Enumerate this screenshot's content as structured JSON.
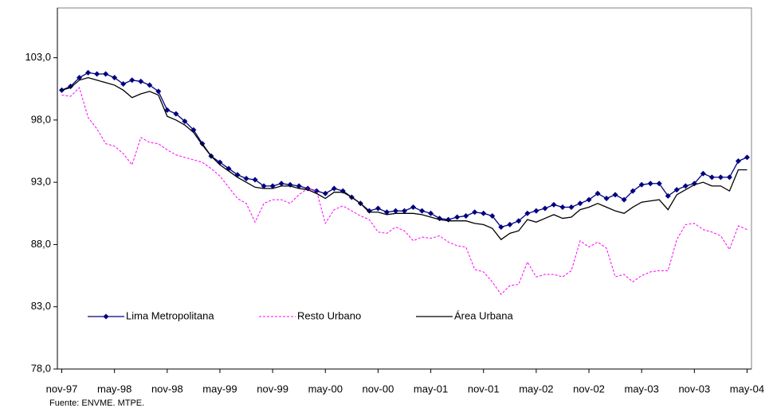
{
  "chart_data": {
    "type": "line",
    "source": "Fuente: ENVME. MTPE.",
    "categories": [
      "nov-97",
      null,
      null,
      null,
      null,
      null,
      "may-98",
      null,
      null,
      null,
      null,
      null,
      "nov-98",
      null,
      null,
      null,
      null,
      null,
      "may-99",
      null,
      null,
      null,
      null,
      null,
      "nov-99",
      null,
      null,
      null,
      null,
      null,
      "may-00",
      null,
      null,
      null,
      null,
      null,
      "nov-00",
      null,
      null,
      null,
      null,
      null,
      "may-01",
      null,
      null,
      null,
      null,
      null,
      "nov-01",
      null,
      null,
      null,
      null,
      null,
      "may-02",
      null,
      null,
      null,
      null,
      null,
      "nov-02",
      null,
      null,
      null,
      null,
      null,
      "may-03",
      null,
      null,
      null,
      null,
      null,
      "nov-03",
      null,
      null,
      null,
      null,
      null,
      "may-04"
    ],
    "series": [
      {
        "name": "Lima Metropolitana",
        "color": "#000080",
        "marker": "diamond",
        "dash": false,
        "values": [
          100.4,
          100.7,
          101.4,
          101.8,
          101.7,
          101.7,
          101.4,
          100.9,
          101.2,
          101.1,
          100.8,
          100.3,
          98.8,
          98.5,
          97.9,
          97.2,
          96.1,
          95.1,
          94.6,
          94.1,
          93.6,
          93.3,
          93.2,
          92.7,
          92.7,
          92.9,
          92.8,
          92.7,
          92.5,
          92.3,
          92.1,
          92.5,
          92.3,
          91.8,
          91.3,
          90.7,
          90.9,
          90.6,
          90.7,
          90.7,
          91.0,
          90.7,
          90.5,
          90.1,
          90.0,
          90.2,
          90.3,
          90.6,
          90.5,
          90.3,
          89.4,
          89.6,
          89.9,
          90.5,
          90.7,
          90.9,
          91.2,
          91.0,
          91.0,
          91.3,
          91.6,
          92.1,
          91.7,
          92.0,
          91.6,
          92.3,
          92.8,
          92.9,
          92.9,
          91.9,
          92.4,
          92.7,
          92.9,
          93.7,
          93.4,
          93.4,
          93.4,
          94.7,
          95.0
        ]
      },
      {
        "name": "Resto Urbano",
        "color": "#ff00ff",
        "marker": "none",
        "dash": true,
        "values": [
          100.0,
          99.9,
          100.6,
          98.2,
          97.3,
          96.1,
          95.9,
          95.3,
          94.4,
          96.6,
          96.2,
          96.1,
          95.6,
          95.2,
          95.0,
          94.8,
          94.6,
          94.1,
          93.5,
          92.6,
          91.7,
          91.3,
          89.8,
          91.3,
          91.6,
          91.6,
          91.3,
          92.0,
          92.5,
          92.3,
          89.7,
          90.8,
          91.1,
          90.7,
          90.3,
          90.0,
          89.0,
          88.9,
          89.4,
          89.1,
          88.3,
          88.6,
          88.5,
          88.7,
          88.2,
          87.9,
          87.8,
          86.0,
          85.8,
          85.0,
          84.0,
          84.7,
          84.8,
          86.6,
          85.4,
          85.6,
          85.6,
          85.4,
          85.9,
          88.3,
          87.8,
          88.2,
          87.7,
          85.4,
          85.6,
          85.0,
          85.5,
          85.8,
          85.9,
          85.9,
          88.4,
          89.6,
          89.7,
          89.2,
          89.0,
          88.7,
          87.6,
          89.5,
          89.2
        ]
      },
      {
        "name": "Área Urbana",
        "color": "#000000",
        "marker": "none",
        "dash": false,
        "values": [
          100.4,
          100.6,
          101.2,
          101.4,
          101.2,
          101.0,
          100.8,
          100.4,
          99.8,
          100.1,
          100.3,
          100.0,
          98.3,
          98.0,
          97.6,
          97.0,
          96.0,
          95.1,
          94.4,
          93.9,
          93.4,
          93.0,
          92.6,
          92.5,
          92.5,
          92.7,
          92.7,
          92.5,
          92.4,
          92.1,
          91.7,
          92.2,
          92.2,
          91.8,
          91.3,
          90.6,
          90.6,
          90.4,
          90.5,
          90.5,
          90.5,
          90.4,
          90.2,
          90.0,
          89.9,
          89.9,
          89.9,
          89.7,
          89.6,
          89.3,
          88.4,
          88.9,
          89.1,
          90.0,
          89.8,
          90.1,
          90.4,
          90.1,
          90.2,
          90.8,
          91.0,
          91.3,
          91.0,
          90.7,
          90.5,
          91.0,
          91.4,
          91.5,
          91.6,
          90.8,
          92.0,
          92.4,
          92.8,
          93.0,
          92.7,
          92.7,
          92.3,
          94.0,
          94.0
        ]
      }
    ],
    "ylim": [
      78,
      107
    ],
    "yticks": [
      {
        "value": 78,
        "label": "78,0"
      },
      {
        "value": 83,
        "label": "83,0"
      },
      {
        "value": 88,
        "label": "88,0"
      },
      {
        "value": 93,
        "label": "93,0"
      },
      {
        "value": 98,
        "label": "98,0"
      },
      {
        "value": 103,
        "label": "103,0"
      }
    ],
    "grid": false,
    "legend": "lower left"
  }
}
